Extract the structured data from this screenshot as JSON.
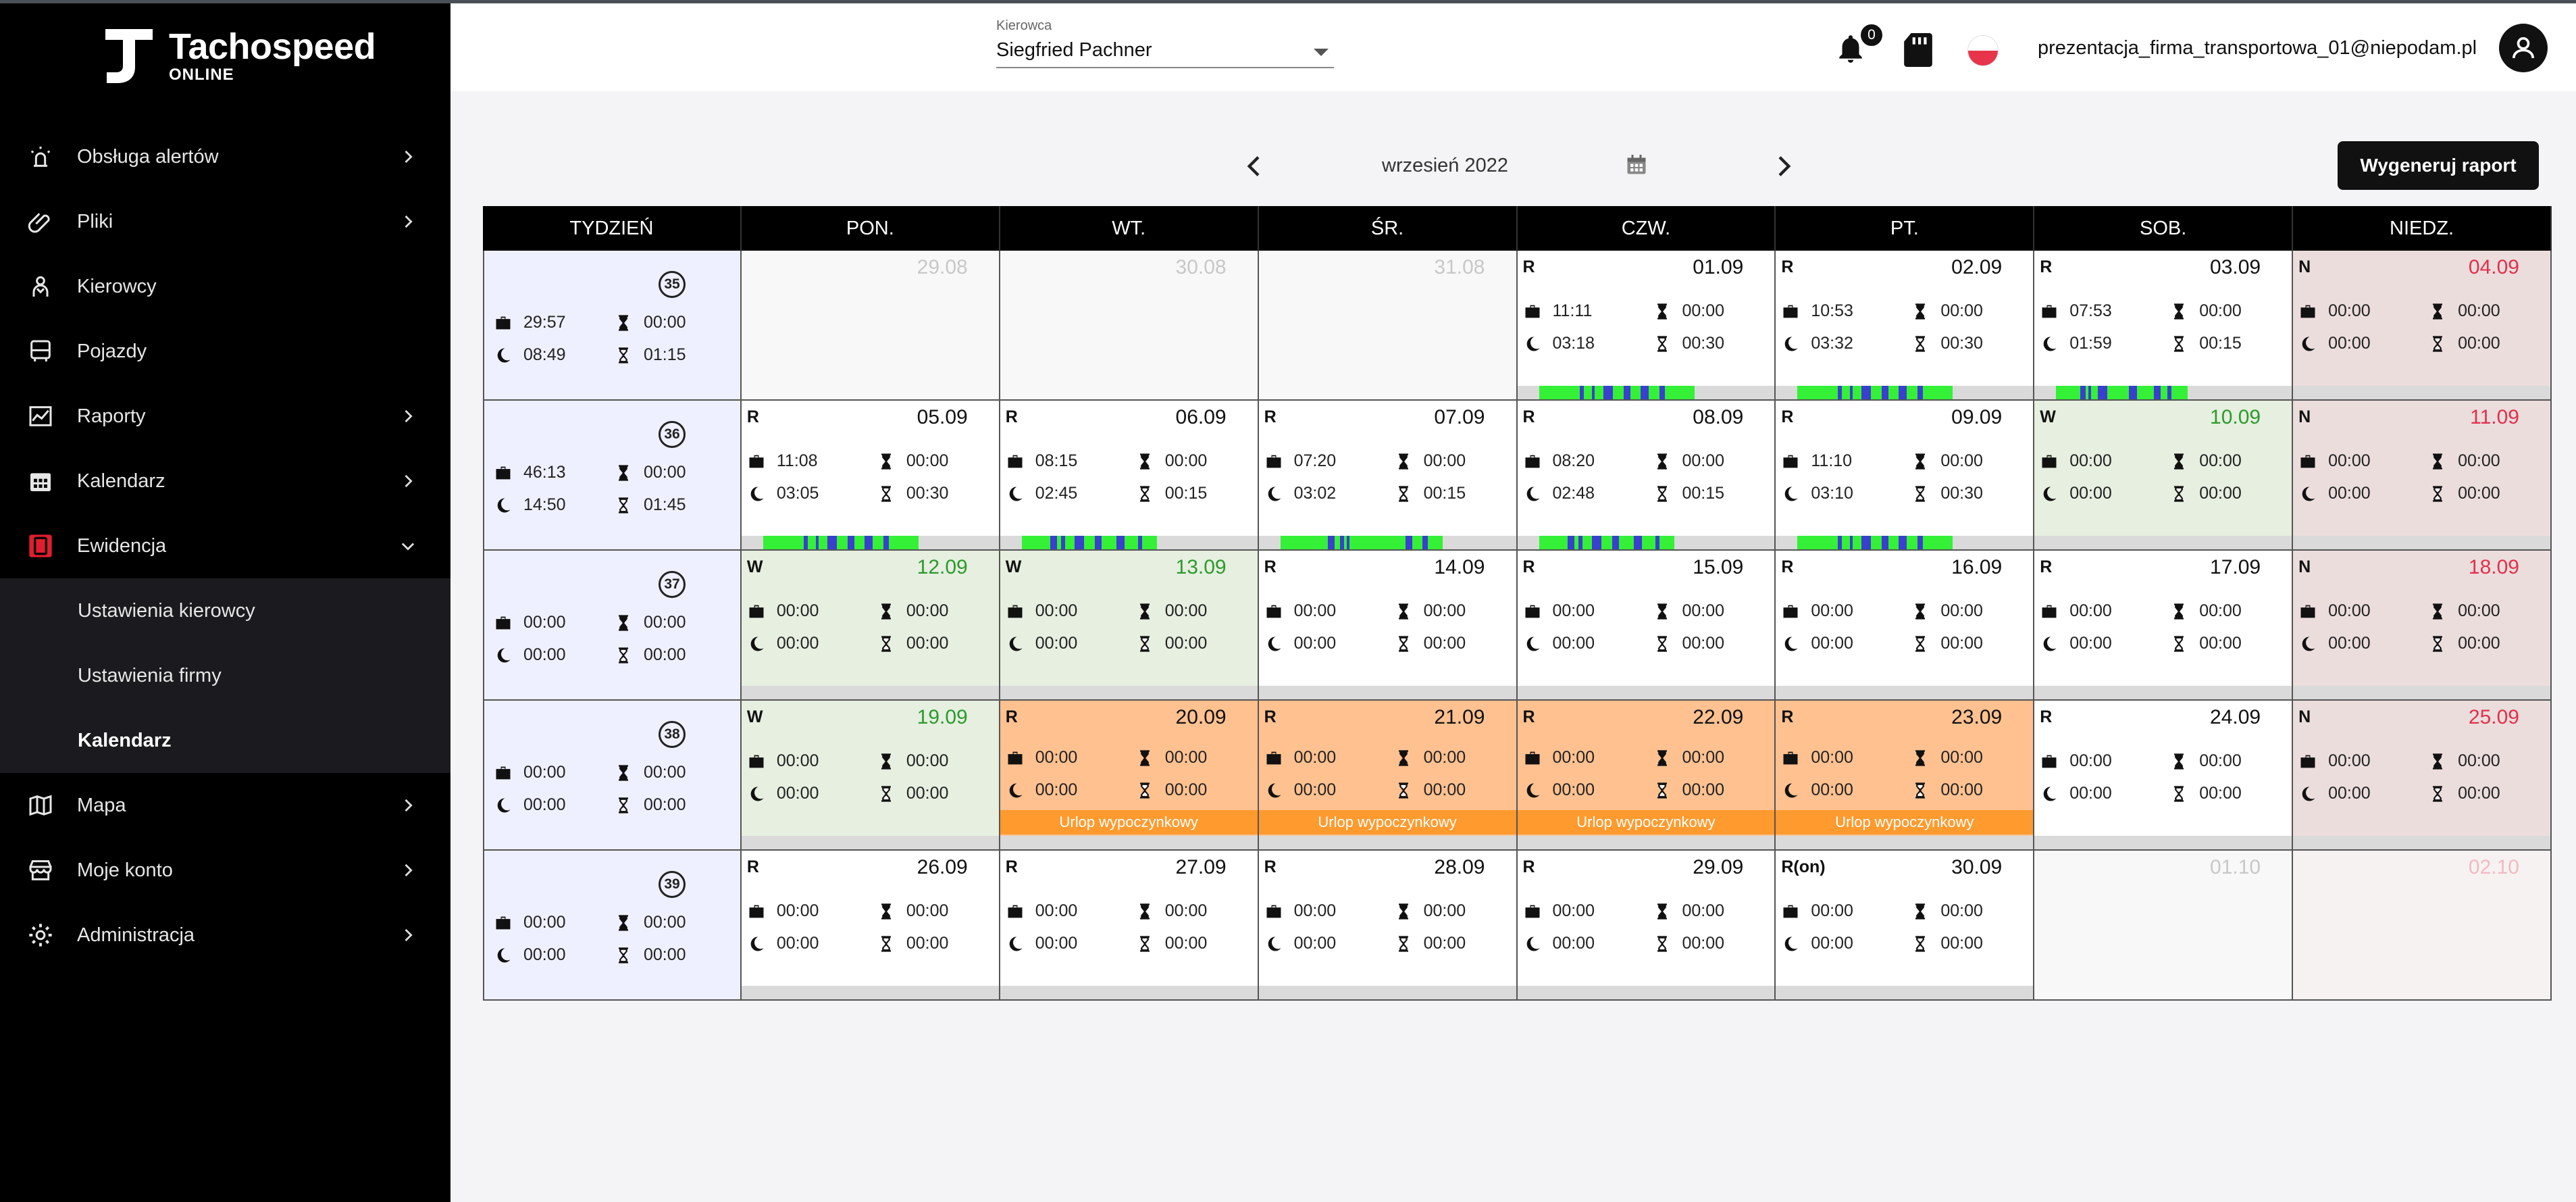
{
  "app": {
    "brand": "Tachospeed",
    "brand_sub": "ONLINE"
  },
  "sidebar": {
    "items": [
      {
        "label": "Obsługa alertów",
        "icon": "alarm-icon",
        "expandable": true
      },
      {
        "label": "Pliki",
        "icon": "paperclip-icon",
        "expandable": true
      },
      {
        "label": "Kierowcy",
        "icon": "driver-icon",
        "expandable": false
      },
      {
        "label": "Pojazdy",
        "icon": "bus-icon",
        "expandable": false
      },
      {
        "label": "Raporty",
        "icon": "chart-icon",
        "expandable": true
      },
      {
        "label": "Kalendarz",
        "icon": "calendar-icon",
        "expandable": true
      },
      {
        "label": "Ewidencja",
        "icon": "records-icon",
        "expanded": true,
        "accent": "#e11d2e"
      },
      {
        "label": "Mapa",
        "icon": "map-icon",
        "expandable": true
      },
      {
        "label": "Moje konto",
        "icon": "store-icon",
        "expandable": true
      },
      {
        "label": "Administracja",
        "icon": "gear-icon",
        "expandable": true
      }
    ],
    "subitems": [
      {
        "label": "Ustawienia kierowcy"
      },
      {
        "label": "Ustawienia firmy"
      },
      {
        "label": "Kalendarz",
        "active": true
      }
    ]
  },
  "topbar": {
    "driver_label": "Kierowca",
    "driver_value": "Siegfried Pachner",
    "notifications": "0",
    "email": "prezentacja_firma_transportowa_01@niepodam.pl"
  },
  "calendar": {
    "month": "wrzesień 2022",
    "generate_label": "Wygeneruj raport",
    "headers": [
      "TYDZIEŃ",
      "PON.",
      "WT.",
      "ŚR.",
      "CZW.",
      "PT.",
      "SOB.",
      "NIEDZ."
    ],
    "weeks": [
      {
        "num": "35",
        "work": "29:57",
        "rest": "08:49",
        "drive": "00:00",
        "break": "01:15",
        "days": [
          {
            "date": "29.08",
            "type": "out"
          },
          {
            "date": "30.08",
            "type": "out"
          },
          {
            "date": "31.08",
            "type": "out"
          },
          {
            "date": "01.09",
            "code": "R",
            "type": "R",
            "work": "11:11",
            "rest": "03:18",
            "drive": "00:00",
            "break": "00:30",
            "activity": "a"
          },
          {
            "date": "02.09",
            "code": "R",
            "type": "R",
            "work": "10:53",
            "rest": "03:32",
            "drive": "00:00",
            "break": "00:30",
            "activity": "a"
          },
          {
            "date": "03.09",
            "code": "R",
            "type": "R",
            "work": "07:53",
            "rest": "01:59",
            "drive": "00:00",
            "break": "00:15",
            "activity": "b"
          },
          {
            "date": "04.09",
            "code": "N",
            "type": "N",
            "work": "00:00",
            "rest": "00:00",
            "drive": "00:00",
            "break": "00:00"
          }
        ]
      },
      {
        "num": "36",
        "work": "46:13",
        "rest": "14:50",
        "drive": "00:00",
        "break": "01:45",
        "days": [
          {
            "date": "05.09",
            "code": "R",
            "type": "R",
            "work": "11:08",
            "rest": "03:05",
            "drive": "00:00",
            "break": "00:30",
            "activity": "a"
          },
          {
            "date": "06.09",
            "code": "R",
            "type": "R",
            "work": "08:15",
            "rest": "02:45",
            "drive": "00:00",
            "break": "00:15",
            "activity": "c"
          },
          {
            "date": "07.09",
            "code": "R",
            "type": "R",
            "work": "07:20",
            "rest": "03:02",
            "drive": "00:00",
            "break": "00:15",
            "activity": "d"
          },
          {
            "date": "08.09",
            "code": "R",
            "type": "R",
            "work": "08:20",
            "rest": "02:48",
            "drive": "00:00",
            "break": "00:15",
            "activity": "c"
          },
          {
            "date": "09.09",
            "code": "R",
            "type": "R",
            "work": "11:10",
            "rest": "03:10",
            "drive": "00:00",
            "break": "00:30",
            "activity": "a"
          },
          {
            "date": "10.09",
            "code": "W",
            "type": "W",
            "work": "00:00",
            "rest": "00:00",
            "drive": "00:00",
            "break": "00:00"
          },
          {
            "date": "11.09",
            "code": "N",
            "type": "N",
            "work": "00:00",
            "rest": "00:00",
            "drive": "00:00",
            "break": "00:00"
          }
        ]
      },
      {
        "num": "37",
        "work": "00:00",
        "rest": "00:00",
        "drive": "00:00",
        "break": "00:00",
        "days": [
          {
            "date": "12.09",
            "code": "W",
            "type": "W",
            "work": "00:00",
            "rest": "00:00",
            "drive": "00:00",
            "break": "00:00"
          },
          {
            "date": "13.09",
            "code": "W",
            "type": "W",
            "work": "00:00",
            "rest": "00:00",
            "drive": "00:00",
            "break": "00:00"
          },
          {
            "date": "14.09",
            "code": "R",
            "type": "R",
            "work": "00:00",
            "rest": "00:00",
            "drive": "00:00",
            "break": "00:00"
          },
          {
            "date": "15.09",
            "code": "R",
            "type": "R",
            "work": "00:00",
            "rest": "00:00",
            "drive": "00:00",
            "break": "00:00"
          },
          {
            "date": "16.09",
            "code": "R",
            "type": "R",
            "work": "00:00",
            "rest": "00:00",
            "drive": "00:00",
            "break": "00:00"
          },
          {
            "date": "17.09",
            "code": "R",
            "type": "R",
            "work": "00:00",
            "rest": "00:00",
            "drive": "00:00",
            "break": "00:00"
          },
          {
            "date": "18.09",
            "code": "N",
            "type": "N",
            "work": "00:00",
            "rest": "00:00",
            "drive": "00:00",
            "break": "00:00"
          }
        ]
      },
      {
        "num": "38",
        "work": "00:00",
        "rest": "00:00",
        "drive": "00:00",
        "break": "00:00",
        "days": [
          {
            "date": "19.09",
            "code": "W",
            "type": "W",
            "work": "00:00",
            "rest": "00:00",
            "drive": "00:00",
            "break": "00:00"
          },
          {
            "date": "20.09",
            "code": "R",
            "type": "U",
            "work": "00:00",
            "rest": "00:00",
            "drive": "00:00",
            "break": "00:00",
            "leave": "Urlop wypoczynkowy"
          },
          {
            "date": "21.09",
            "code": "R",
            "type": "U",
            "work": "00:00",
            "rest": "00:00",
            "drive": "00:00",
            "break": "00:00",
            "leave": "Urlop wypoczynkowy"
          },
          {
            "date": "22.09",
            "code": "R",
            "type": "U",
            "work": "00:00",
            "rest": "00:00",
            "drive": "00:00",
            "break": "00:00",
            "leave": "Urlop wypoczynkowy"
          },
          {
            "date": "23.09",
            "code": "R",
            "type": "U",
            "work": "00:00",
            "rest": "00:00",
            "drive": "00:00",
            "break": "00:00",
            "leave": "Urlop wypoczynkowy"
          },
          {
            "date": "24.09",
            "code": "R",
            "type": "R",
            "work": "00:00",
            "rest": "00:00",
            "drive": "00:00",
            "break": "00:00"
          },
          {
            "date": "25.09",
            "code": "N",
            "type": "N",
            "work": "00:00",
            "rest": "00:00",
            "drive": "00:00",
            "break": "00:00"
          }
        ]
      },
      {
        "num": "39",
        "work": "00:00",
        "rest": "00:00",
        "drive": "00:00",
        "break": "00:00",
        "days": [
          {
            "date": "26.09",
            "code": "R",
            "type": "R",
            "work": "00:00",
            "rest": "00:00",
            "drive": "00:00",
            "break": "00:00"
          },
          {
            "date": "27.09",
            "code": "R",
            "type": "R",
            "work": "00:00",
            "rest": "00:00",
            "drive": "00:00",
            "break": "00:00"
          },
          {
            "date": "28.09",
            "code": "R",
            "type": "R",
            "work": "00:00",
            "rest": "00:00",
            "drive": "00:00",
            "break": "00:00"
          },
          {
            "date": "29.09",
            "code": "R",
            "type": "R",
            "work": "00:00",
            "rest": "00:00",
            "drive": "00:00",
            "break": "00:00"
          },
          {
            "date": "30.09",
            "code": "R(on)",
            "type": "R",
            "work": "00:00",
            "rest": "00:00",
            "drive": "00:00",
            "break": "00:00"
          },
          {
            "date": "01.10",
            "type": "out"
          },
          {
            "date": "02.10",
            "type": "out N"
          }
        ]
      }
    ]
  },
  "colors": {
    "activity_green": "#34f036",
    "activity_blue": "#3a3fcf",
    "leave": "#ff9a2e"
  }
}
